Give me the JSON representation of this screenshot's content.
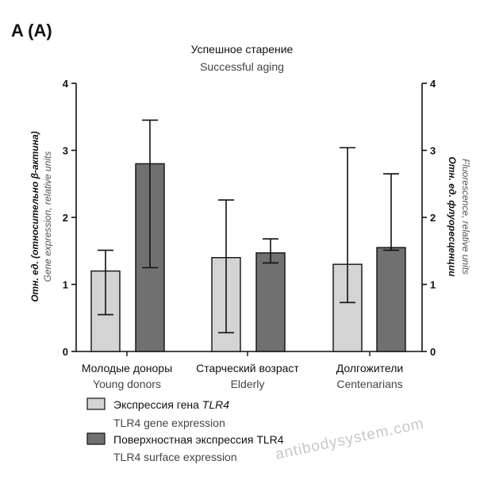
{
  "panel_label": "A (A)",
  "watermark": "antibodysystem.com",
  "chart_data": {
    "type": "bar",
    "title": "Успешное старение",
    "subtitle": "Successful aging",
    "categories": [
      {
        "ru": "Молодые доноры",
        "en": "Young donors"
      },
      {
        "ru": "Старческий возраст",
        "en": "Elderly"
      },
      {
        "ru": "Долгожители",
        "en": "Centenarians"
      }
    ],
    "series": [
      {
        "name_ru_prefix": "Экспрессия гена ",
        "name_ru_gene": "TLR4",
        "name_en": "TLR4 gene expression",
        "color": "#d4d4d4",
        "values": [
          1.2,
          1.4,
          1.3
        ],
        "err_low": [
          0.55,
          0.28,
          0.73
        ],
        "err_high": [
          1.51,
          2.26,
          3.04
        ]
      },
      {
        "name_ru_prefix": "Поверхностная экспрессия TLR4",
        "name_ru_gene": "",
        "name_en": "TLR4 surface expression",
        "color": "#707070",
        "values": [
          2.8,
          1.47,
          1.55
        ],
        "err_low": [
          1.25,
          1.32,
          1.51
        ],
        "err_high": [
          3.45,
          1.68,
          2.65
        ]
      }
    ],
    "y_left": {
      "label_ru": "Отн. ед. (относительно β-актина)",
      "label_en": "Gene expression, relative units",
      "ticks": [
        "0",
        "1",
        "2",
        "3",
        "4"
      ],
      "ylim": [
        0,
        4
      ]
    },
    "y_right": {
      "label_ru": "Отн. ед. флуоресценции",
      "label_en": "Fluorescence, relative units",
      "ticks": [
        "0",
        "1",
        "2",
        "3",
        "4"
      ],
      "ylim": [
        0,
        4
      ]
    },
    "grid": false,
    "legend_position": "bottom-left"
  }
}
